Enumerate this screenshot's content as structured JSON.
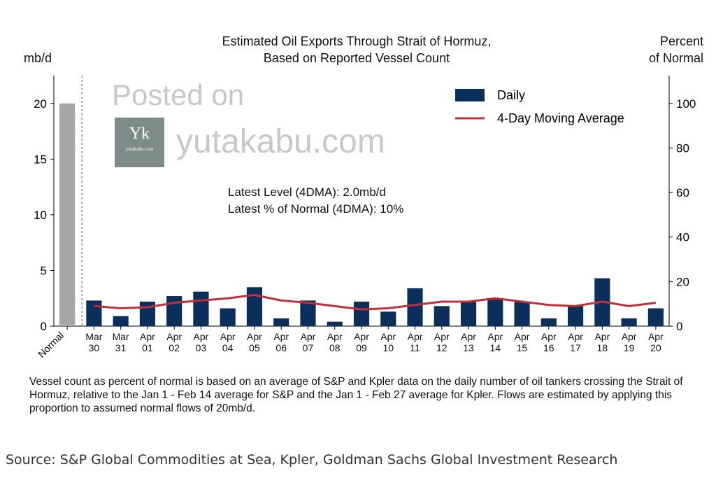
{
  "chart_data": {
    "type": "bar_line",
    "title": "Estimated Oil Exports Through Strait of Hormuz,\nBased on Reported Vessel Count",
    "y_label": "mb/d",
    "y2_label": "Percent\nof Normal",
    "categories": [
      "Normal",
      "Mar 30",
      "Mar 31",
      "Apr 01",
      "Apr 02",
      "Apr 03",
      "Apr 04",
      "Apr 05",
      "Apr 06",
      "Apr 07",
      "Apr 08",
      "Apr 09",
      "Apr 10",
      "Apr 11",
      "Apr 12",
      "Apr 13",
      "Apr 14",
      "Apr 15",
      "Apr 16",
      "Apr 17",
      "Apr 18",
      "Apr 19",
      "Apr 20"
    ],
    "series": [
      {
        "name": "Daily",
        "kind": "bar",
        "color": "#0b2f5b",
        "colors": [
          "#a6a6a6",
          "#0b2f5b",
          "#0b2f5b",
          "#0b2f5b",
          "#0b2f5b",
          "#0b2f5b",
          "#0b2f5b",
          "#0b2f5b",
          "#0b2f5b",
          "#0b2f5b",
          "#0b2f5b",
          "#0b2f5b",
          "#0b2f5b",
          "#0b2f5b",
          "#0b2f5b",
          "#0b2f5b",
          "#0b2f5b",
          "#0b2f5b",
          "#0b2f5b",
          "#0b2f5b",
          "#0b2f5b",
          "#0b2f5b",
          "#0b2f5b"
        ],
        "values": [
          20,
          2.3,
          0.9,
          2.2,
          2.7,
          3.1,
          1.6,
          3.5,
          0.7,
          2.3,
          0.4,
          2.2,
          1.3,
          3.4,
          1.8,
          2.2,
          2.5,
          2.2,
          0.7,
          1.8,
          4.3,
          0.7,
          1.6
        ]
      },
      {
        "name": "4-Day Moving Average",
        "kind": "line",
        "color": "#c0303a",
        "values": [
          null,
          1.8,
          1.6,
          1.7,
          2.1,
          2.3,
          2.5,
          2.8,
          2.3,
          2.1,
          1.8,
          1.5,
          1.6,
          1.9,
          2.2,
          2.2,
          2.5,
          2.2,
          1.9,
          1.8,
          2.2,
          1.8,
          2.1
        ]
      }
    ],
    "ylim": [
      0,
      22.5
    ],
    "yticks": [
      0,
      5,
      10,
      15,
      20
    ],
    "y2lim": [
      0,
      112.5
    ],
    "y2ticks": [
      0,
      20,
      40,
      60,
      80,
      100
    ],
    "legend": "upper right",
    "annotations": [
      "Latest Level (4DMA): 2.0mb/d",
      "Latest % of Normal (4DMA): 10%"
    ],
    "watermark": [
      "Posted on",
      "yutakabu.com"
    ],
    "logo": [
      "Yk",
      "yutakabu.com"
    ],
    "footnote": "Vessel count as percent of normal is based on an average of S&P and Kpler data on the daily number of oil tankers crossing the Strait of Hormuz, relative to the Jan 1 - Feb 14 average for S&P and the Jan 1 - Feb 27 average for Kpler. Flows are estimated by applying this proportion to assumed normal flows of 20mb/d.",
    "source": "Source: S&P Global Commodities at Sea, Kpler, Goldman Sachs Global Investment Research"
  }
}
